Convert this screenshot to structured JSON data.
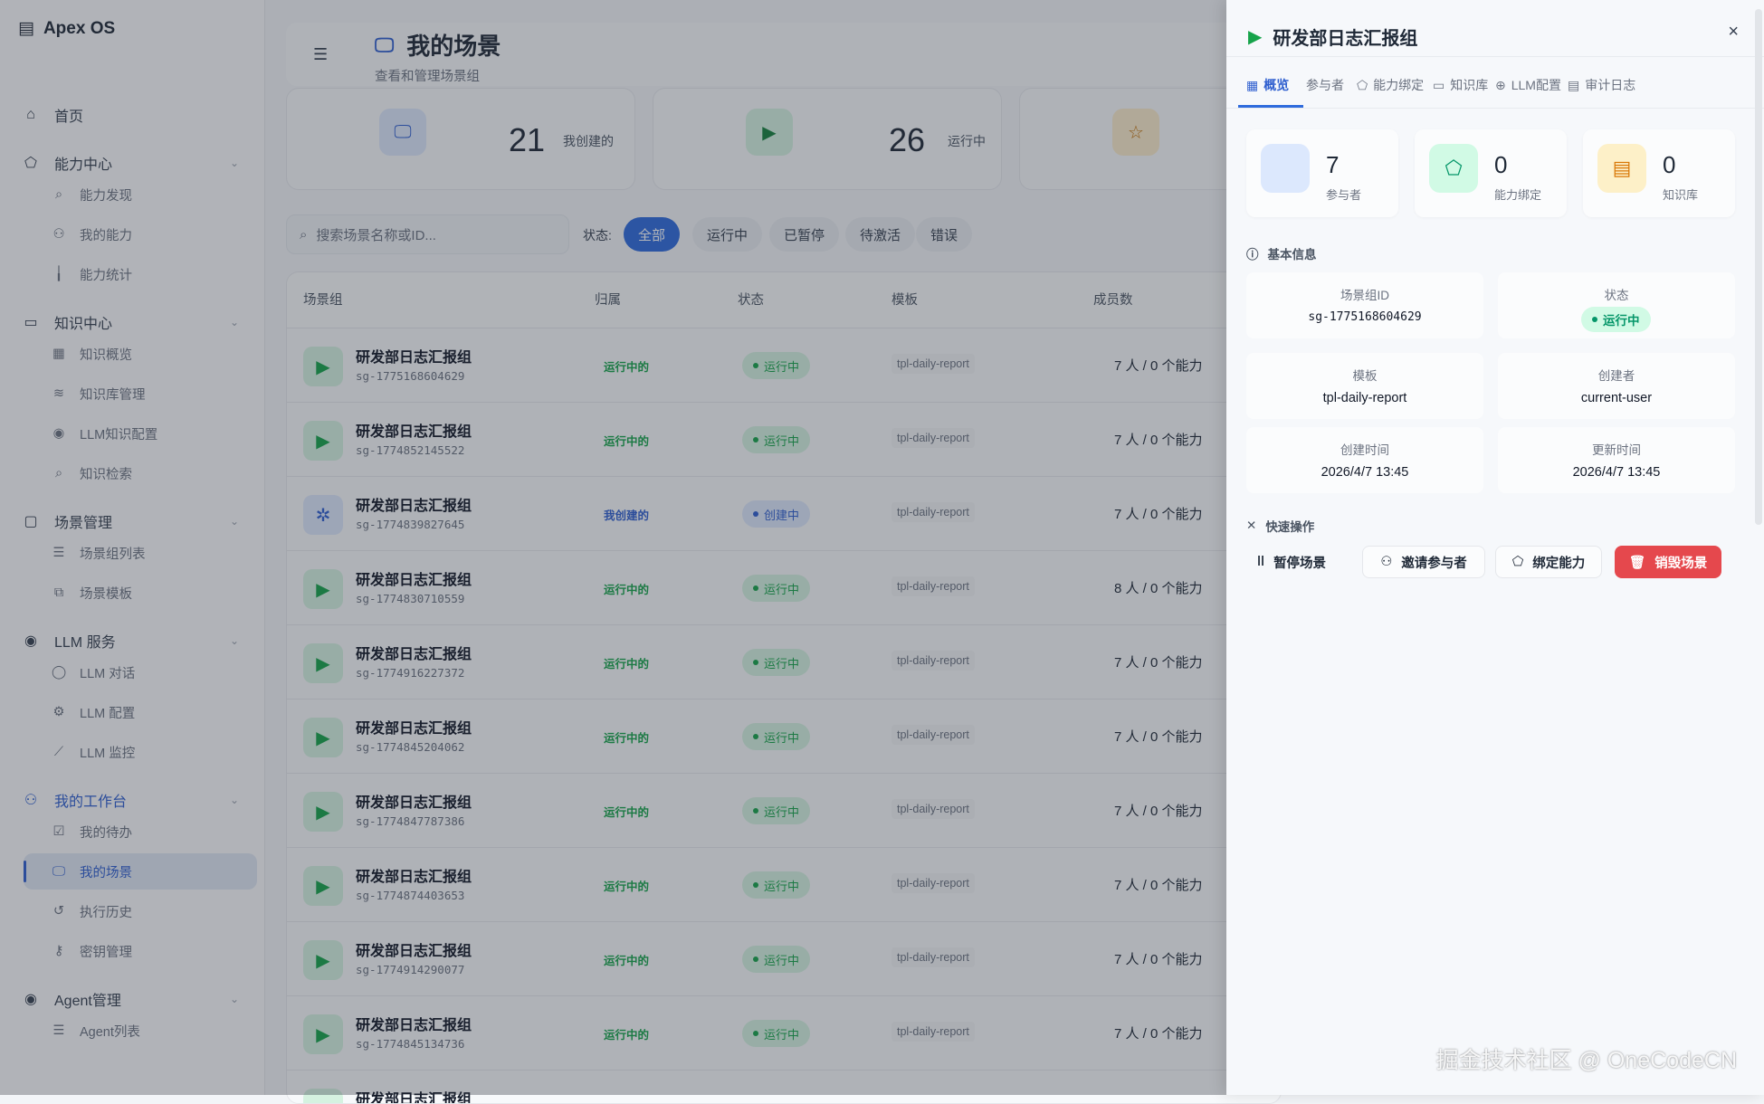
{
  "app": {
    "title": "Apex OS"
  },
  "sidebar": {
    "home": "首页",
    "groups": [
      {
        "label": "能力中心",
        "items": [
          "能力发现",
          "我的能力",
          "能力统计"
        ]
      },
      {
        "label": "知识中心",
        "items": [
          "知识概览",
          "知识库管理",
          "LLM知识配置",
          "知识检索"
        ]
      },
      {
        "label": "场景管理",
        "items": [
          "场景组列表",
          "场景模板"
        ]
      },
      {
        "label": "LLM 服务",
        "items": [
          "LLM 对话",
          "LLM 配置",
          "LLM 监控"
        ]
      },
      {
        "label": "我的工作台",
        "items": [
          "我的待办",
          "我的场景",
          "执行历史",
          "密钥管理"
        ]
      },
      {
        "label": "Agent管理",
        "items": [
          "Agent列表"
        ]
      }
    ],
    "active_item": "我的场景"
  },
  "header": {
    "title": "我的场景",
    "subtitle": "查看和管理场景组"
  },
  "stats": [
    {
      "value": "21",
      "label": "我创建的",
      "icon": "monitor-icon"
    },
    {
      "value": "26",
      "label": "运行中",
      "icon": "play-icon"
    },
    {
      "value": "",
      "label": "",
      "icon": "user-star-icon"
    }
  ],
  "search": {
    "placeholder": "搜索场景名称或ID..."
  },
  "filter": {
    "label": "状态:",
    "options": [
      "全部",
      "运行中",
      "已暂停",
      "待激活",
      "错误"
    ],
    "selected": "全部"
  },
  "table": {
    "columns": [
      "场景组",
      "归属",
      "状态",
      "模板",
      "成员数"
    ],
    "rows": [
      {
        "name": "研发部日志汇报组",
        "id": "sg-1775168604629",
        "owner": "运行中的",
        "status": "运行中",
        "template": "tpl-daily-report",
        "members": "7 人 / 0 个能力"
      },
      {
        "name": "研发部日志汇报组",
        "id": "sg-1774852145522",
        "owner": "运行中的",
        "status": "运行中",
        "template": "tpl-daily-report",
        "members": "7 人 / 0 个能力"
      },
      {
        "name": "研发部日志汇报组",
        "id": "sg-1774839827645",
        "owner": "我创建的",
        "status": "创建中",
        "template": "tpl-daily-report",
        "members": "7 人 / 0 个能力"
      },
      {
        "name": "研发部日志汇报组",
        "id": "sg-1774830710559",
        "owner": "运行中的",
        "status": "运行中",
        "template": "tpl-daily-report",
        "members": "8 人 / 0 个能力"
      },
      {
        "name": "研发部日志汇报组",
        "id": "sg-1774916227372",
        "owner": "运行中的",
        "status": "运行中",
        "template": "tpl-daily-report",
        "members": "7 人 / 0 个能力"
      },
      {
        "name": "研发部日志汇报组",
        "id": "sg-1774845204062",
        "owner": "运行中的",
        "status": "运行中",
        "template": "tpl-daily-report",
        "members": "7 人 / 0 个能力"
      },
      {
        "name": "研发部日志汇报组",
        "id": "sg-1774847787386",
        "owner": "运行中的",
        "status": "运行中",
        "template": "tpl-daily-report",
        "members": "7 人 / 0 个能力"
      },
      {
        "name": "研发部日志汇报组",
        "id": "sg-1774874403653",
        "owner": "运行中的",
        "status": "运行中",
        "template": "tpl-daily-report",
        "members": "7 人 / 0 个能力"
      },
      {
        "name": "研发部日志汇报组",
        "id": "sg-1774914290077",
        "owner": "运行中的",
        "status": "运行中",
        "template": "tpl-daily-report",
        "members": "7 人 / 0 个能力"
      },
      {
        "name": "研发部日志汇报组",
        "id": "sg-1774845134736",
        "owner": "运行中的",
        "status": "运行中",
        "template": "tpl-daily-report",
        "members": "7 人 / 0 个能力"
      },
      {
        "name": "研发部日志汇报组",
        "id": "",
        "owner": "",
        "status": "",
        "template": "",
        "members": ""
      }
    ]
  },
  "drawer": {
    "title": "研发部日志汇报组",
    "close": "×",
    "tabs": [
      {
        "label": "概览",
        "icon": "grid-icon"
      },
      {
        "label": "参与者",
        "icon": ""
      },
      {
        "label": "能力绑定",
        "icon": "puzzle-icon"
      },
      {
        "label": "知识库",
        "icon": "book-icon"
      },
      {
        "label": "LLM配置",
        "icon": "brain-icon"
      },
      {
        "label": "审计日志",
        "icon": "log-icon"
      }
    ],
    "active_tab": "概览",
    "stats": [
      {
        "value": "7",
        "label": "参与者"
      },
      {
        "value": "0",
        "label": "能力绑定"
      },
      {
        "value": "0",
        "label": "知识库"
      }
    ],
    "basic_info_title": "基本信息",
    "info": {
      "id_label": "场景组ID",
      "id": "sg-1775168604629",
      "status_label": "状态",
      "status": "运行中",
      "template_label": "模板",
      "template": "tpl-daily-report",
      "creator_label": "创建者",
      "creator": "current-user",
      "created_label": "创建时间",
      "created": "2026/4/7 13:45",
      "updated_label": "更新时间",
      "updated": "2026/4/7 13:45"
    },
    "quick_title": "快速操作",
    "actions": {
      "pause": "暂停场景",
      "invite": "邀请参与者",
      "bind": "绑定能力",
      "destroy": "销毁场景"
    }
  },
  "colors": {
    "primary": "#2f6bdc",
    "success": "#16a34a",
    "danger": "#e5484d",
    "warning": "#f59e0b"
  },
  "watermark": "掘金技术社区 @ OneCodeCN"
}
